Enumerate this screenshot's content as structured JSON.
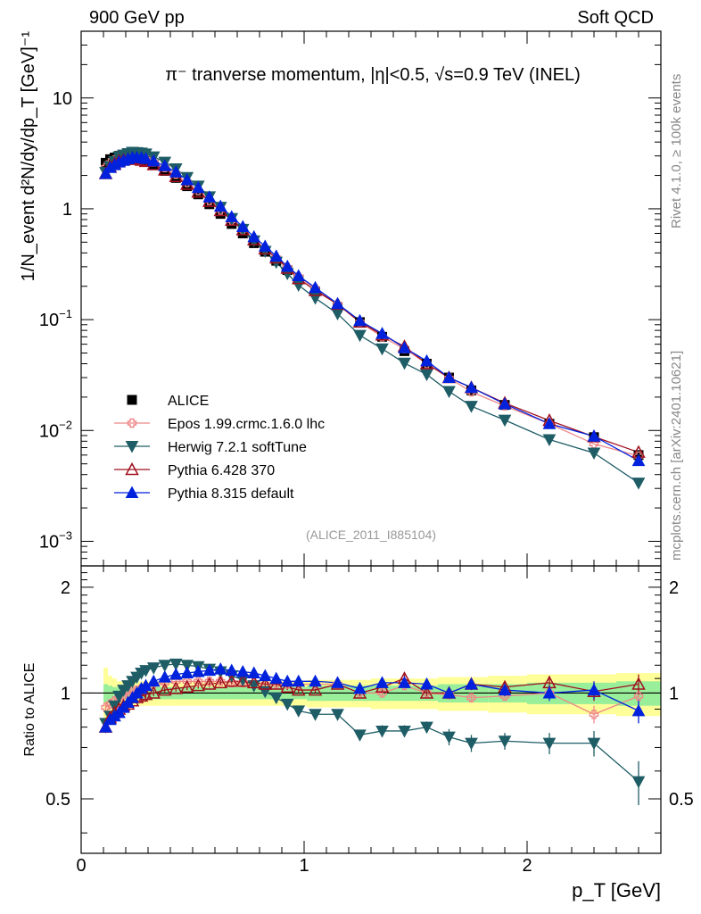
{
  "header": {
    "left": "900 GeV pp",
    "right": "Soft QCD"
  },
  "side_labels": {
    "upper": "Rivet 4.1.0, ≥ 100k events",
    "lower": "mcplots.cern.ch [arXiv:2401.10621]"
  },
  "chart_data": {
    "type": "line",
    "title": "π⁻ tranverse momentum, |η|<0.5, √s=0.9 TeV (INEL)",
    "analysis_tag": "(ALICE_2011_I885104)",
    "xlabel": "p_T [GeV]",
    "ylabel": "1/N_event d²N/dy/dp_T [GeV]⁻¹",
    "ratio_ylabel": "Ratio to ALICE",
    "xlim": [
      0,
      2.6
    ],
    "ylim": [
      0.0006,
      40
    ],
    "ratio_ylim": [
      0.35,
      2.3
    ],
    "x_ticks": [
      "0",
      "1",
      "2"
    ],
    "y_ticks": [
      "10⁻³",
      "10⁻²",
      "10⁻¹",
      "1",
      "10"
    ],
    "ratio_ticks": [
      "0.5",
      "1",
      "2"
    ],
    "x": [
      0.11,
      0.13,
      0.15,
      0.17,
      0.19,
      0.21,
      0.23,
      0.25,
      0.27,
      0.29,
      0.325,
      0.375,
      0.425,
      0.475,
      0.525,
      0.575,
      0.625,
      0.675,
      0.725,
      0.775,
      0.825,
      0.875,
      0.925,
      0.975,
      1.05,
      1.15,
      1.25,
      1.35,
      1.45,
      1.55,
      1.65,
      1.75,
      1.9,
      2.1,
      2.3,
      2.5
    ],
    "data": {
      "name": "ALICE",
      "values": [
        2.6,
        2.8,
        2.9,
        3.0,
        3.0,
        3.0,
        3.0,
        2.9,
        2.8,
        2.7,
        2.5,
        2.2,
        1.9,
        1.6,
        1.35,
        1.1,
        0.9,
        0.73,
        0.6,
        0.49,
        0.41,
        0.34,
        0.28,
        0.23,
        0.18,
        0.13,
        0.095,
        0.07,
        0.052,
        0.04,
        0.03,
        0.023,
        0.017,
        0.0115,
        0.0087,
        0.006
      ],
      "stat_band": [
        0.06,
        0.05,
        0.04,
        0.04,
        0.04,
        0.04,
        0.04,
        0.04,
        0.04,
        0.04,
        0.04,
        0.04,
        0.04,
        0.04,
        0.04,
        0.04,
        0.04,
        0.04,
        0.04,
        0.04,
        0.04,
        0.04,
        0.04,
        0.04,
        0.05,
        0.05,
        0.05,
        0.05,
        0.05,
        0.05,
        0.06,
        0.06,
        0.06,
        0.07,
        0.07,
        0.08
      ],
      "total_band": [
        0.18,
        0.12,
        0.1,
        0.08,
        0.08,
        0.08,
        0.08,
        0.08,
        0.08,
        0.08,
        0.08,
        0.08,
        0.08,
        0.08,
        0.08,
        0.08,
        0.08,
        0.08,
        0.08,
        0.08,
        0.08,
        0.08,
        0.08,
        0.08,
        0.09,
        0.09,
        0.09,
        0.1,
        0.1,
        0.1,
        0.11,
        0.11,
        0.12,
        0.13,
        0.13,
        0.14
      ]
    },
    "series": [
      {
        "name": "Epos 1.99.crmc.1.6.0 lhc",
        "color": "#ee8888",
        "marker": "cross-open",
        "ratio": [
          0.91,
          0.93,
          0.95,
          0.97,
          0.99,
          1.0,
          1.01,
          1.02,
          1.03,
          1.04,
          1.06,
          1.07,
          1.08,
          1.08,
          1.08,
          1.08,
          1.08,
          1.07,
          1.07,
          1.07,
          1.06,
          1.06,
          1.06,
          1.06,
          1.06,
          1.06,
          1.0,
          1.0,
          1.05,
          1.0,
          0.99,
          0.97,
          0.98,
          1.0,
          0.87,
          0.98
        ],
        "ratio_err": [
          0.03,
          0.02,
          0.02,
          0.02,
          0.02,
          0.02,
          0.02,
          0.02,
          0.02,
          0.02,
          0.02,
          0.02,
          0.02,
          0.02,
          0.02,
          0.02,
          0.02,
          0.02,
          0.02,
          0.02,
          0.02,
          0.02,
          0.02,
          0.02,
          0.02,
          0.02,
          0.02,
          0.03,
          0.03,
          0.03,
          0.03,
          0.03,
          0.03,
          0.04,
          0.05,
          0.06
        ]
      },
      {
        "name": "Herwig 7.2.1 softTune",
        "color": "#1f5d66",
        "marker": "triangle-down-filled",
        "ratio": [
          0.82,
          0.86,
          0.92,
          0.98,
          1.02,
          1.05,
          1.08,
          1.11,
          1.14,
          1.16,
          1.18,
          1.2,
          1.21,
          1.2,
          1.19,
          1.17,
          1.15,
          1.12,
          1.09,
          1.05,
          1.01,
          0.97,
          0.93,
          0.89,
          0.87,
          0.87,
          0.76,
          0.78,
          0.78,
          0.8,
          0.75,
          0.72,
          0.73,
          0.72,
          0.72,
          0.56
        ],
        "ratio_err": [
          0.03,
          0.02,
          0.02,
          0.02,
          0.02,
          0.02,
          0.02,
          0.02,
          0.02,
          0.02,
          0.02,
          0.02,
          0.02,
          0.02,
          0.02,
          0.02,
          0.02,
          0.02,
          0.02,
          0.02,
          0.02,
          0.02,
          0.02,
          0.02,
          0.02,
          0.02,
          0.02,
          0.03,
          0.03,
          0.03,
          0.04,
          0.04,
          0.04,
          0.05,
          0.06,
          0.08
        ]
      },
      {
        "name": "Pythia 6.428 370",
        "color": "#a01020",
        "marker": "triangle-up-open",
        "ratio": [
          0.8,
          0.85,
          0.88,
          0.9,
          0.92,
          0.93,
          0.95,
          0.97,
          0.98,
          0.99,
          1.0,
          1.02,
          1.03,
          1.04,
          1.05,
          1.06,
          1.07,
          1.08,
          1.08,
          1.07,
          1.06,
          1.06,
          1.04,
          1.02,
          1.02,
          1.06,
          1.0,
          1.04,
          1.1,
          1.0,
          1.0,
          1.06,
          1.04,
          1.07,
          1.01,
          1.06
        ],
        "ratio_err": [
          0.03,
          0.02,
          0.02,
          0.02,
          0.02,
          0.02,
          0.02,
          0.02,
          0.02,
          0.02,
          0.02,
          0.02,
          0.02,
          0.02,
          0.02,
          0.02,
          0.02,
          0.02,
          0.02,
          0.02,
          0.02,
          0.02,
          0.02,
          0.02,
          0.02,
          0.02,
          0.02,
          0.03,
          0.03,
          0.03,
          0.03,
          0.04,
          0.04,
          0.05,
          0.06,
          0.07
        ]
      },
      {
        "name": "Pythia 8.315 default",
        "color": "#0022dd",
        "marker": "triangle-up-filled",
        "ratio": [
          0.8,
          0.84,
          0.86,
          0.88,
          0.91,
          0.94,
          0.97,
          1.0,
          1.03,
          1.05,
          1.08,
          1.11,
          1.13,
          1.14,
          1.15,
          1.16,
          1.17,
          1.16,
          1.15,
          1.14,
          1.12,
          1.1,
          1.08,
          1.08,
          1.08,
          1.07,
          1.03,
          1.07,
          1.07,
          1.06,
          1.0,
          1.06,
          1.02,
          1.0,
          1.02,
          0.89
        ],
        "ratio_err": [
          0.03,
          0.02,
          0.02,
          0.02,
          0.02,
          0.02,
          0.02,
          0.02,
          0.02,
          0.02,
          0.02,
          0.02,
          0.02,
          0.02,
          0.02,
          0.02,
          0.02,
          0.02,
          0.02,
          0.02,
          0.02,
          0.02,
          0.02,
          0.02,
          0.02,
          0.02,
          0.02,
          0.03,
          0.03,
          0.03,
          0.03,
          0.04,
          0.04,
          0.05,
          0.06,
          0.07
        ]
      }
    ],
    "legend_position": "middle-left"
  }
}
